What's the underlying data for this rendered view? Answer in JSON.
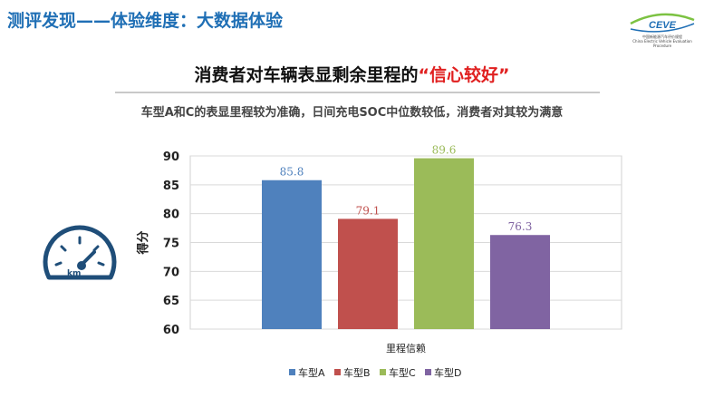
{
  "header": {
    "title": "测评发现——体验维度：大数据体验"
  },
  "logo": {
    "text": "CEVE",
    "line1": "中国新能源汽车评价规程",
    "line2": "China Electric Vehicle Evaluation Procedure"
  },
  "headline": {
    "main": "消费者对车辆表显剩余里程的",
    "highlight": "“信心较好”"
  },
  "subtitle": "车型A和C的表显里程较为准确，日间充电SOC中位数较低，消费者对其较为满意",
  "gauge": {
    "unit": "km"
  },
  "colors": {
    "accent": "#1f6fb5",
    "highlight": "#e02020"
  },
  "chart_data": {
    "type": "bar",
    "categories": [
      "里程信赖"
    ],
    "series": [
      {
        "name": "车型A",
        "values": [
          85.8
        ],
        "color": "#4f81bd"
      },
      {
        "name": "车型B",
        "values": [
          79.1
        ],
        "color": "#c0504d"
      },
      {
        "name": "车型C",
        "values": [
          89.6
        ],
        "color": "#9bbb59"
      },
      {
        "name": "车型D",
        "values": [
          76.3
        ],
        "color": "#8064a2"
      }
    ],
    "ylabel": "得分",
    "xlabel": "里程信赖",
    "ylim": [
      60,
      90
    ],
    "yticks": [
      60,
      65,
      70,
      75,
      80,
      85,
      90
    ],
    "grid": true,
    "legend": "bottom"
  }
}
